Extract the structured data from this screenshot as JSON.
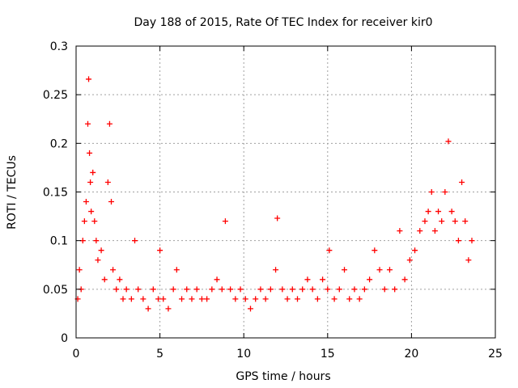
{
  "chart_data": {
    "type": "scatter",
    "title": "Day 188 of 2015, Rate Of TEC Index for receiver kir0",
    "xlabel": "GPS time / hours",
    "ylabel": "ROTI / TECUs",
    "xlim": [
      0,
      25
    ],
    "ylim": [
      0,
      0.3
    ],
    "xticks": [
      "0",
      "5",
      "10",
      "15",
      "20",
      "25"
    ],
    "yticks": [
      "0",
      "0.05",
      "0.1",
      "0.15",
      "0.2",
      "0.25",
      "0.3"
    ],
    "grid": true,
    "marker": "+",
    "color": "#ff0000",
    "series": [
      {
        "x": [
          0.1,
          0.2,
          0.3,
          0.4,
          0.5,
          0.6,
          0.7,
          0.75,
          0.8,
          0.85,
          0.9,
          1.0,
          1.1,
          1.2,
          1.3,
          1.5,
          1.7,
          1.9,
          2.0,
          2.1,
          2.2,
          2.4,
          2.6,
          2.8,
          3.0,
          3.3,
          3.5,
          3.7,
          4.0,
          4.3,
          4.6,
          4.9,
          5.0,
          5.2,
          5.5,
          5.8,
          6.0,
          6.3,
          6.6,
          6.9,
          7.2,
          7.5,
          7.8,
          8.1,
          8.4,
          8.7,
          8.9,
          9.2,
          9.5,
          9.8,
          10.1,
          10.4,
          10.7,
          11.0,
          11.3,
          11.6,
          11.9,
          12.0,
          12.3,
          12.6,
          12.9,
          13.2,
          13.5,
          13.8,
          14.1,
          14.4,
          14.7,
          15.0,
          15.1,
          15.4,
          15.7,
          16.0,
          16.3,
          16.6,
          16.9,
          17.2,
          17.5,
          17.8,
          18.1,
          18.4,
          18.7,
          19.0,
          19.3,
          19.6,
          19.9,
          20.2,
          20.5,
          20.8,
          21.0,
          21.2,
          21.4,
          21.6,
          21.8,
          22.0,
          22.2,
          22.4,
          22.6,
          22.8,
          23.0,
          23.2,
          23.4,
          23.6
        ],
        "y": [
          0.04,
          0.07,
          0.05,
          0.1,
          0.12,
          0.14,
          0.22,
          0.266,
          0.19,
          0.16,
          0.13,
          0.17,
          0.12,
          0.1,
          0.08,
          0.09,
          0.06,
          0.16,
          0.22,
          0.14,
          0.07,
          0.05,
          0.06,
          0.04,
          0.05,
          0.04,
          0.1,
          0.05,
          0.04,
          0.03,
          0.05,
          0.04,
          0.09,
          0.04,
          0.03,
          0.05,
          0.07,
          0.04,
          0.05,
          0.04,
          0.05,
          0.04,
          0.04,
          0.05,
          0.06,
          0.05,
          0.12,
          0.05,
          0.04,
          0.05,
          0.04,
          0.03,
          0.04,
          0.05,
          0.04,
          0.05,
          0.07,
          0.123,
          0.05,
          0.04,
          0.05,
          0.04,
          0.05,
          0.06,
          0.05,
          0.04,
          0.06,
          0.05,
          0.09,
          0.04,
          0.05,
          0.07,
          0.04,
          0.05,
          0.04,
          0.05,
          0.06,
          0.09,
          0.07,
          0.05,
          0.07,
          0.05,
          0.11,
          0.06,
          0.08,
          0.09,
          0.11,
          0.12,
          0.13,
          0.15,
          0.11,
          0.13,
          0.12,
          0.15,
          0.202,
          0.13,
          0.12,
          0.1,
          0.16,
          0.12,
          0.08,
          0.1
        ]
      }
    ]
  }
}
